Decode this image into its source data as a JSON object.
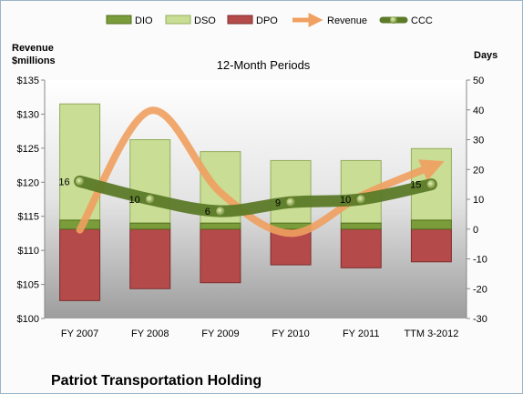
{
  "chart_data": {
    "type": "bar",
    "subtitle": "12-Month Periods",
    "company": "Patriot Transportation Holding",
    "left_axis_title": [
      "Revenue",
      "$millions"
    ],
    "right_axis_title": "Days",
    "categories": [
      "FY 2007",
      "FY 2008",
      "FY 2009",
      "FY 2010",
      "FY 2011",
      "TTM 3-2012"
    ],
    "left_ylim": [
      100,
      135
    ],
    "left_ticks": [
      "$100",
      "$105",
      "$110",
      "$115",
      "$120",
      "$125",
      "$130",
      "$135"
    ],
    "right_ylim": [
      -30,
      50
    ],
    "right_ticks": [
      "-30",
      "-20",
      "-10",
      "0",
      "10",
      "20",
      "30",
      "40",
      "50"
    ],
    "series": [
      {
        "name": "DIO",
        "axis": "right",
        "values": [
          3,
          2,
          2,
          2,
          2,
          3
        ],
        "color": "#7a9c3a"
      },
      {
        "name": "DSO",
        "axis": "right",
        "values": [
          39,
          28,
          24,
          21,
          21,
          24
        ],
        "color": "#c9dd95"
      },
      {
        "name": "DPO",
        "axis": "right",
        "values": [
          -24,
          -20,
          -18,
          -12,
          -13,
          -11
        ],
        "color": "#b44a4a"
      },
      {
        "name": "Revenue",
        "axis": "left",
        "type": "line",
        "values": [
          113,
          130.5,
          118.5,
          112.5,
          118,
          122.3
        ],
        "color": "#f0a060"
      },
      {
        "name": "CCC",
        "axis": "right",
        "type": "line",
        "values": [
          16,
          10,
          6,
          9,
          10,
          15
        ],
        "color": "#5c7a28"
      }
    ],
    "ccc_labels": [
      "16",
      "10",
      "6",
      "9",
      "10",
      "15"
    ],
    "colors": {
      "dio": "#7a9c3a",
      "dso": "#c9dd95",
      "dpo": "#b44a4a",
      "revenue": "#f0a060",
      "ccc": "#5c7a28"
    }
  }
}
